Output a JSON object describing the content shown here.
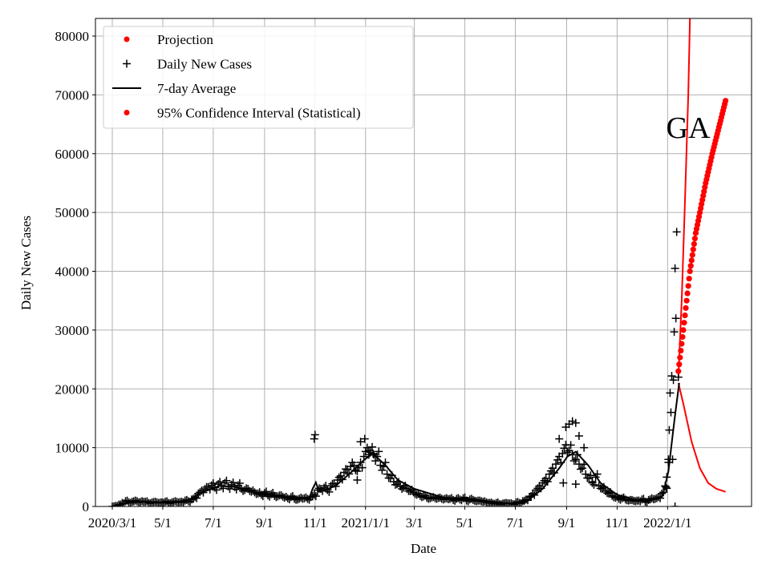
{
  "chart_data": {
    "type": "scatter",
    "title": "",
    "annotation": "GA",
    "xlabel": "Date",
    "ylabel": "Daily New Cases",
    "x_unit": "days since 2020-03-01",
    "xlim": [
      -20,
      772
    ],
    "ylim": [
      0,
      83000
    ],
    "grid": true,
    "legend_position": "top-left",
    "x_ticks": [
      {
        "day": 0,
        "label": "2020/3/1"
      },
      {
        "day": 61,
        "label": "5/1"
      },
      {
        "day": 122,
        "label": "7/1"
      },
      {
        "day": 184,
        "label": "9/1"
      },
      {
        "day": 245,
        "label": "11/1"
      },
      {
        "day": 306,
        "label": "2021/1/1"
      },
      {
        "day": 365,
        "label": "3/1"
      },
      {
        "day": 426,
        "label": "5/1"
      },
      {
        "day": 487,
        "label": "7/1"
      },
      {
        "day": 549,
        "label": "9/1"
      },
      {
        "day": 610,
        "label": "11/1"
      },
      {
        "day": 671,
        "label": "2022/1/1"
      }
    ],
    "y_ticks": [
      0,
      10000,
      20000,
      30000,
      40000,
      50000,
      60000,
      70000,
      80000
    ],
    "legend": [
      {
        "label": "Projection",
        "marker": "dot",
        "color": "#ff0000"
      },
      {
        "label": "Daily New Cases",
        "marker": "plus",
        "color": "#000000"
      },
      {
        "label": "7-day Average",
        "marker": "line",
        "color": "#000000"
      },
      {
        "label": "95% Confidence Interval (Statistical)",
        "marker": "dot",
        "color": "#ff0000"
      }
    ],
    "series": [
      {
        "name": "Daily New Cases",
        "color": "#000000",
        "start_day": 0,
        "step_days": 4,
        "values": [
          0,
          100,
          300,
          600,
          900,
          700,
          800,
          1000,
          700,
          900,
          800,
          600,
          700,
          800,
          600,
          700,
          800,
          600,
          700,
          900,
          700,
          800,
          1000,
          900,
          1200,
          1600,
          2200,
          2700,
          3000,
          3300,
          3600,
          3200,
          3800,
          3500,
          4000,
          3400,
          3700,
          3300,
          3600,
          3000,
          2800,
          3000,
          2500,
          2400,
          2200,
          2000,
          2300,
          1900,
          2100,
          1800,
          1700,
          1900,
          1500,
          1400,
          1600,
          1300,
          1200,
          1500,
          1400,
          1300,
          1600,
          2000,
          2800,
          3000,
          3200,
          2800,
          3500,
          3900,
          4500,
          5200,
          5800,
          6300,
          6800,
          7000,
          6000,
          7500,
          8500,
          10000,
          9200,
          8800,
          8500,
          7000,
          6800,
          5500,
          4800,
          4200,
          3800,
          3400,
          3200,
          3000,
          2600,
          2400,
          2000,
          1800,
          1700,
          1500,
          1400,
          1600,
          1300,
          1500,
          1200,
          1400,
          1300,
          1100,
          1300,
          1200,
          1400,
          1000,
          1200,
          1100,
          900,
          1000,
          800,
          700,
          600,
          500,
          600,
          400,
          500,
          600,
          500,
          400,
          700,
          600,
          900,
          1200,
          1600,
          2200,
          2800,
          3500,
          4000,
          4800,
          5500,
          6500,
          7200,
          8500,
          9000,
          10500,
          9500,
          8800,
          8000,
          7200,
          6500,
          5500,
          4800,
          4200,
          5000,
          3500,
          3000,
          2600,
          2200,
          1800,
          1500,
          1300,
          1400,
          1200,
          1000,
          1100,
          900,
          1000,
          1200,
          800,
          1100,
          1400,
          1300,
          1600,
          2200,
          3500
        ],
        "extra_points": [
          [
            244,
            11500
          ],
          [
            245,
            12200
          ],
          [
            300,
            11000
          ],
          [
            305,
            11500
          ],
          [
            310,
            9500
          ],
          [
            315,
            9000
          ],
          [
            296,
            4500
          ],
          [
            552,
            14000
          ],
          [
            556,
            14500
          ],
          [
            560,
            14200
          ],
          [
            548,
            13500
          ],
          [
            540,
            11500
          ],
          [
            564,
            12000
          ],
          [
            570,
            10000
          ],
          [
            580,
            4000
          ],
          [
            545,
            4000
          ],
          [
            560,
            3800
          ],
          [
            669,
            3300
          ],
          [
            670,
            5000
          ],
          [
            672,
            7500
          ],
          [
            672,
            8000
          ],
          [
            673,
            13000
          ],
          [
            674,
            19300
          ],
          [
            675,
            16000
          ],
          [
            676,
            22200
          ],
          [
            677,
            8000
          ],
          [
            678,
            21500
          ],
          [
            679,
            29700
          ],
          [
            680,
            40500
          ],
          [
            681,
            32000
          ],
          [
            682,
            46700
          ],
          [
            680,
            0
          ],
          [
            684,
            22000
          ]
        ]
      },
      {
        "name": "7-day Average",
        "color": "#000000",
        "points": [
          [
            0,
            0
          ],
          [
            15,
            500
          ],
          [
            30,
            800
          ],
          [
            60,
            700
          ],
          [
            90,
            900
          ],
          [
            110,
            2500
          ],
          [
            130,
            3500
          ],
          [
            150,
            3300
          ],
          [
            170,
            2500
          ],
          [
            190,
            2000
          ],
          [
            220,
            1500
          ],
          [
            238,
            1400
          ],
          [
            242,
            3000
          ],
          [
            246,
            4100
          ],
          [
            250,
            2500
          ],
          [
            270,
            3500
          ],
          [
            290,
            6000
          ],
          [
            305,
            8000
          ],
          [
            315,
            9000
          ],
          [
            330,
            7000
          ],
          [
            345,
            4500
          ],
          [
            365,
            3000
          ],
          [
            400,
            1500
          ],
          [
            430,
            1300
          ],
          [
            460,
            800
          ],
          [
            480,
            500
          ],
          [
            500,
            800
          ],
          [
            520,
            3000
          ],
          [
            540,
            6500
          ],
          [
            550,
            8500
          ],
          [
            560,
            9300
          ],
          [
            575,
            7000
          ],
          [
            590,
            4000
          ],
          [
            610,
            2000
          ],
          [
            630,
            1200
          ],
          [
            650,
            1000
          ],
          [
            665,
            1800
          ],
          [
            672,
            6000
          ],
          [
            677,
            12000
          ],
          [
            680,
            15500
          ],
          [
            685,
            21000
          ]
        ]
      },
      {
        "name": "Projection",
        "color": "#ff0000",
        "start_day": 684,
        "step_days": 1,
        "keypoints": [
          [
            684,
            23000
          ],
          [
            690,
            30000
          ],
          [
            698,
            40000
          ],
          [
            705,
            46500
          ],
          [
            710,
            50000
          ],
          [
            717,
            55000
          ],
          [
            725,
            60000
          ],
          [
            733,
            64500
          ],
          [
            741,
            69000
          ]
        ]
      },
      {
        "name": "95% Confidence Interval (Statistical) upper",
        "color": "#ff0000",
        "points": [
          [
            684,
            22000
          ],
          [
            688,
            35000
          ],
          [
            692,
            52000
          ],
          [
            696,
            70000
          ],
          [
            698,
            83000
          ]
        ]
      },
      {
        "name": "95% Confidence Interval (Statistical) lower",
        "color": "#ff0000",
        "points": [
          [
            684,
            21000
          ],
          [
            690,
            17500
          ],
          [
            700,
            11000
          ],
          [
            710,
            6500
          ],
          [
            720,
            4000
          ],
          [
            730,
            3000
          ],
          [
            741,
            2500
          ]
        ]
      }
    ]
  }
}
